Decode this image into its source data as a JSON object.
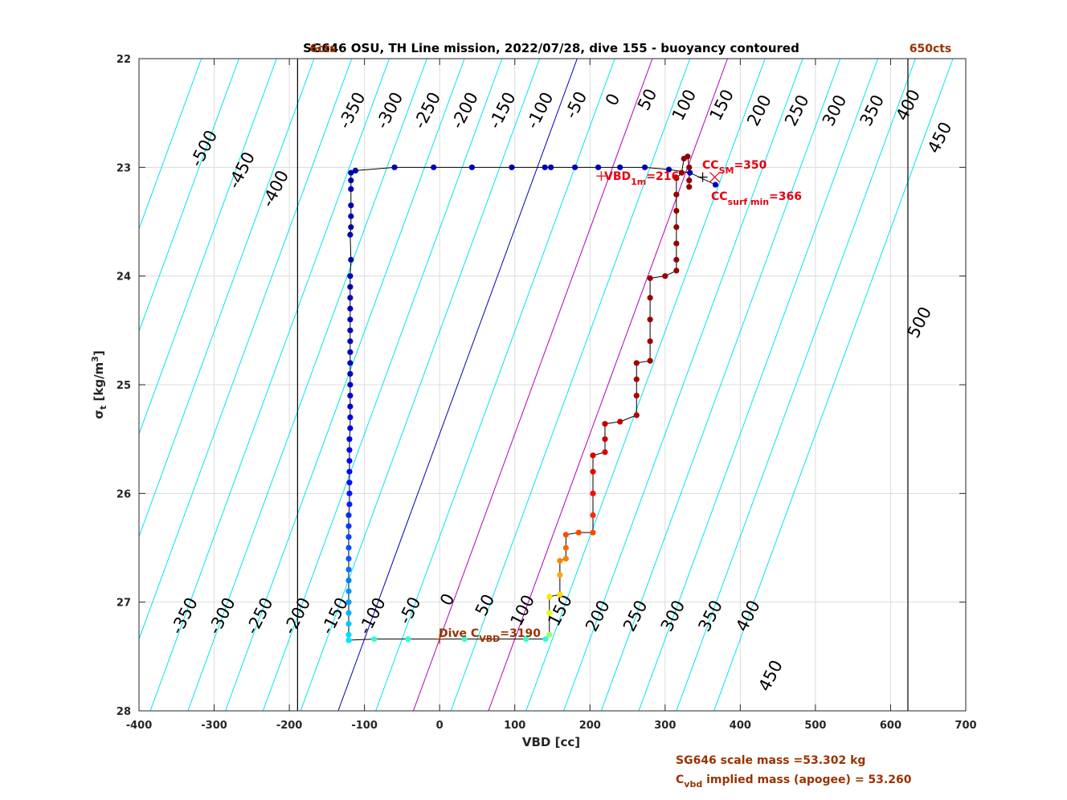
{
  "chart_data": {
    "type": "scatter",
    "title": "SG646 OSU, TH Line mission, 2022/07/28, dive 155 - buoyancy contoured",
    "xlabel": "VBD [cc]",
    "ylabel": "σt [kg/m3]",
    "ylabel_main": "σ",
    "ylabel_sub": "t",
    "ylabel_unit": "[kg/m",
    "ylabel_unit_sup": "3",
    "ylabel_unit_end": "]",
    "xlim": [
      -400,
      700
    ],
    "ylim": [
      22,
      28
    ],
    "y_reversed": true,
    "grid": true,
    "x_ticks": [
      -400,
      -300,
      -200,
      -100,
      0,
      100,
      200,
      300,
      400,
      500,
      600,
      700
    ],
    "x_tick_labels": [
      "-400",
      "-300",
      "-200",
      "-100",
      "0",
      "100",
      "200",
      "300",
      "400",
      "500",
      "600",
      "700"
    ],
    "y_ticks": [
      22,
      23,
      24,
      25,
      26,
      27,
      28
    ],
    "y_tick_labels": [
      "22",
      "23",
      "24",
      "25",
      "26",
      "27",
      "28"
    ],
    "vertical_limit_lines": {
      "x": [
        -189,
        623
      ],
      "labels": [
        "6cts",
        "650cts"
      ],
      "color": "#993300"
    },
    "buoyancy_contours": {
      "values": [
        -500,
        -450,
        -400,
        -350,
        -300,
        -250,
        -200,
        -150,
        -100,
        -50,
        0,
        50,
        100,
        150,
        200,
        250,
        300,
        350,
        400,
        450,
        500
      ],
      "x_at_22": [
        -317,
        -267,
        -217,
        -167,
        -117,
        -67,
        -17,
        33,
        83,
        133,
        183,
        233,
        283,
        333,
        383,
        433,
        483,
        533,
        583,
        633,
        683
      ],
      "x_at_28": [
        -635,
        -585,
        -535,
        -485,
        -435,
        -385,
        -335,
        -285,
        -235,
        -185,
        -135,
        -85,
        -35,
        15,
        65,
        115,
        165,
        215,
        265,
        315,
        365
      ],
      "color": "#00e5ee",
      "zero_color": "#0000b4",
      "highlight_color": "#b400b4",
      "highlight_values": [
        100,
        200
      ],
      "top_labels": [
        {
          "text": "-500",
          "x": -307,
          "y": 22.85
        },
        {
          "text": "-450",
          "x": -257,
          "y": 23.05
        },
        {
          "text": "-400",
          "x": -212,
          "y": 23.22
        },
        {
          "text": "-350",
          "x": -110,
          "y": 22.5
        },
        {
          "text": "-300",
          "x": -60,
          "y": 22.5
        },
        {
          "text": "-250",
          "x": -10,
          "y": 22.5
        },
        {
          "text": "-200",
          "x": 40,
          "y": 22.5
        },
        {
          "text": "-150",
          "x": 90,
          "y": 22.5
        },
        {
          "text": "-100",
          "x": 140,
          "y": 22.5
        },
        {
          "text": "-50",
          "x": 188,
          "y": 22.45
        },
        {
          "text": "0",
          "x": 237,
          "y": 22.4
        },
        {
          "text": "50",
          "x": 283,
          "y": 22.4
        },
        {
          "text": "100",
          "x": 332,
          "y": 22.45
        },
        {
          "text": "150",
          "x": 382,
          "y": 22.45
        },
        {
          "text": "200",
          "x": 432,
          "y": 22.5
        },
        {
          "text": "250",
          "x": 482,
          "y": 22.5
        },
        {
          "text": "300",
          "x": 532,
          "y": 22.5
        },
        {
          "text": "350",
          "x": 582,
          "y": 22.5
        },
        {
          "text": "400",
          "x": 630,
          "y": 22.45
        },
        {
          "text": "450",
          "x": 672,
          "y": 22.75
        },
        {
          "text": "500",
          "x": 645,
          "y": 24.45
        }
      ],
      "bottom_labels": [
        {
          "text": "-350",
          "x": -333,
          "y": 27.15
        },
        {
          "text": "-300",
          "x": -283,
          "y": 27.15
        },
        {
          "text": "-250",
          "x": -233,
          "y": 27.15
        },
        {
          "text": "-200",
          "x": -183,
          "y": 27.15
        },
        {
          "text": "-150",
          "x": -133,
          "y": 27.15
        },
        {
          "text": "-100",
          "x": -83,
          "y": 27.15
        },
        {
          "text": "-50",
          "x": -33,
          "y": 27.1
        },
        {
          "text": "0",
          "x": 17,
          "y": 27.0
        },
        {
          "text": "50",
          "x": 67,
          "y": 27.05
        },
        {
          "text": "100",
          "x": 117,
          "y": 27.1
        },
        {
          "text": "150",
          "x": 167,
          "y": 27.1
        },
        {
          "text": "200",
          "x": 217,
          "y": 27.15
        },
        {
          "text": "250",
          "x": 267,
          "y": 27.15
        },
        {
          "text": "300",
          "x": 317,
          "y": 27.15
        },
        {
          "text": "350",
          "x": 367,
          "y": 27.15
        },
        {
          "text": "400",
          "x": 417,
          "y": 27.15
        },
        {
          "text": "450",
          "x": 447,
          "y": 27.7
        }
      ]
    },
    "series": [
      {
        "name": "descent",
        "description_color": "blue",
        "points": [
          [
            367,
            23.16
          ],
          [
            333,
            23.05
          ],
          [
            305,
            23.02
          ],
          [
            273,
            23.0
          ],
          [
            240,
            23.0
          ],
          [
            211,
            23.0
          ],
          [
            180,
            23.0
          ],
          [
            148,
            23.0
          ],
          [
            140,
            23.0
          ],
          [
            96,
            23.0
          ],
          [
            43,
            23.0
          ],
          [
            -8,
            23.0
          ],
          [
            -60,
            23.0
          ],
          [
            -112,
            23.03
          ],
          [
            -118,
            23.05
          ],
          [
            -118,
            23.12
          ],
          [
            -118,
            23.2
          ],
          [
            -118,
            23.35
          ],
          [
            -118,
            23.45
          ],
          [
            -118,
            23.55
          ],
          [
            -119,
            23.62
          ],
          [
            -118,
            23.85
          ],
          [
            -119,
            24.0
          ],
          [
            -119,
            24.1
          ],
          [
            -119,
            24.2
          ],
          [
            -119,
            24.3
          ],
          [
            -119,
            24.4
          ],
          [
            -119,
            24.5
          ],
          [
            -119,
            24.6
          ],
          [
            -119,
            24.7
          ],
          [
            -119,
            24.8
          ],
          [
            -119,
            24.9
          ],
          [
            -119,
            25.0
          ],
          [
            -119,
            25.1
          ],
          [
            -119,
            25.2
          ],
          [
            -119,
            25.3
          ],
          [
            -119,
            25.4
          ],
          [
            -120,
            25.5
          ],
          [
            -120,
            25.6
          ],
          [
            -120,
            25.7
          ],
          [
            -120,
            25.8
          ],
          [
            -120,
            25.9
          ],
          [
            -120,
            26.0
          ],
          [
            -120,
            26.1
          ],
          [
            -121,
            26.2
          ],
          [
            -121,
            26.3
          ],
          [
            -121,
            26.4
          ],
          [
            -121,
            26.5
          ],
          [
            -121,
            26.6
          ],
          [
            -121,
            26.7
          ],
          [
            -121,
            26.8
          ],
          [
            -121,
            26.9
          ],
          [
            -121,
            27.0
          ],
          [
            -121,
            27.1
          ],
          [
            -121,
            27.2
          ],
          [
            -121,
            27.3
          ],
          [
            -121,
            27.35
          ]
        ]
      },
      {
        "name": "apogee",
        "points": [
          [
            -87,
            27.34
          ],
          [
            -42,
            27.34
          ],
          [
            33,
            27.34
          ],
          [
            115,
            27.34
          ],
          [
            141,
            27.34
          ]
        ]
      },
      {
        "name": "climb",
        "points": [
          [
            146,
            27.3
          ],
          [
            146,
            27.1
          ],
          [
            146,
            26.95
          ],
          [
            160,
            26.93
          ],
          [
            160,
            26.75
          ],
          [
            160,
            26.62
          ],
          [
            168,
            26.6
          ],
          [
            168,
            26.5
          ],
          [
            168,
            26.38
          ],
          [
            185,
            26.36
          ],
          [
            204,
            26.36
          ],
          [
            204,
            26.2
          ],
          [
            204,
            26.0
          ],
          [
            204,
            25.8
          ],
          [
            204,
            25.65
          ],
          [
            220,
            25.62
          ],
          [
            220,
            25.5
          ],
          [
            220,
            25.36
          ],
          [
            240,
            25.34
          ],
          [
            262,
            25.28
          ],
          [
            262,
            25.1
          ],
          [
            262,
            24.95
          ],
          [
            262,
            24.8
          ],
          [
            280,
            24.78
          ],
          [
            280,
            24.6
          ],
          [
            280,
            24.4
          ],
          [
            280,
            24.2
          ],
          [
            280,
            24.02
          ],
          [
            300,
            24.0
          ],
          [
            315,
            23.95
          ],
          [
            315,
            23.85
          ],
          [
            315,
            23.7
          ],
          [
            315,
            23.55
          ],
          [
            315,
            23.4
          ],
          [
            315,
            23.25
          ],
          [
            315,
            23.1
          ],
          [
            322,
            23.05
          ],
          [
            325,
            22.92
          ],
          [
            330,
            22.9
          ],
          [
            332,
            23.0
          ],
          [
            332,
            23.12
          ],
          [
            332,
            23.18
          ]
        ]
      }
    ],
    "markers": [
      {
        "type": "cross",
        "x": 215,
        "y": 23.08,
        "color": "#e6000e"
      },
      {
        "type": "plus",
        "x": 350,
        "y": 23.09,
        "color": "#000000"
      },
      {
        "type": "x",
        "x": 366,
        "y": 23.09,
        "color": "#e6000e"
      },
      {
        "type": "plus",
        "x": 0,
        "y": 27.34,
        "color": "#993300"
      }
    ],
    "annotations": {
      "vbd_label": "VBD",
      "vbd_sub": "1m",
      "vbd_value": "=216",
      "ccsm_label": "CC",
      "ccsm_sub": "SM",
      "ccsm_value": "=350",
      "ccsurf_label": "CC",
      "ccsurf_sub": "surf min",
      "ccsurf_value": "=366",
      "divec_label": "Dive C",
      "divec_sub": "VBD",
      "divec_value": "=3190",
      "scale_mass": "SG646 scale mass =53.302 kg",
      "implied_label": "C",
      "implied_sub": "vbd",
      "implied_value": " implied mass (apogee) = 53.260"
    },
    "colors": {
      "contour": "#00e5ee",
      "zero_contour": "#0000b4",
      "highlight_contour": "#b400b4",
      "red_text": "#e6000e",
      "brown_text": "#993300",
      "grid": "#dcdcdc",
      "path_line": "#000000"
    }
  }
}
